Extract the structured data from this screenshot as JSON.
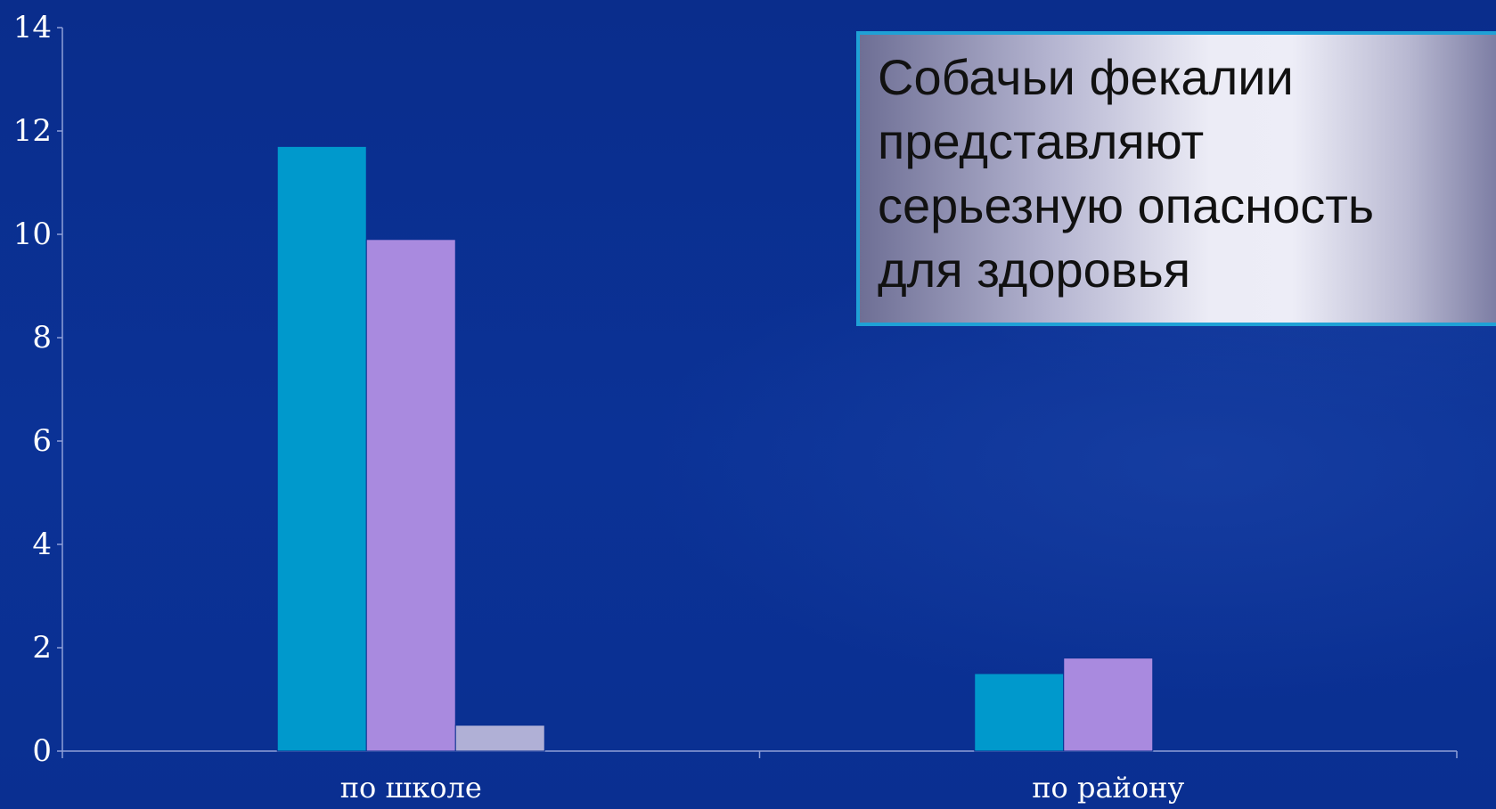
{
  "callout": {
    "text": "Собачьи фекалии\nпредставляют\nсерьезную опасность\nдля здоровья"
  },
  "colors": {
    "background": "#0a2f91",
    "series_1": "#0099cc",
    "series_2": "#a98adf",
    "series_3": "#b0b0d6",
    "axis": "#8fa0d8",
    "callout_border": "#1fa1d6"
  },
  "chart_data": {
    "type": "bar",
    "categories": [
      "по школе",
      "по району"
    ],
    "series": [
      {
        "values": [
          11.7,
          1.5
        ],
        "color": "#0099cc"
      },
      {
        "values": [
          9.9,
          1.8
        ],
        "color": "#a98adf"
      },
      {
        "values": [
          0.5,
          0
        ],
        "color": "#b0b0d6"
      }
    ],
    "ylim": [
      0,
      14
    ],
    "yticks": [
      0,
      2,
      4,
      6,
      8,
      10,
      12,
      14
    ],
    "title": "",
    "xlabel": "",
    "ylabel": "",
    "grid": false
  }
}
